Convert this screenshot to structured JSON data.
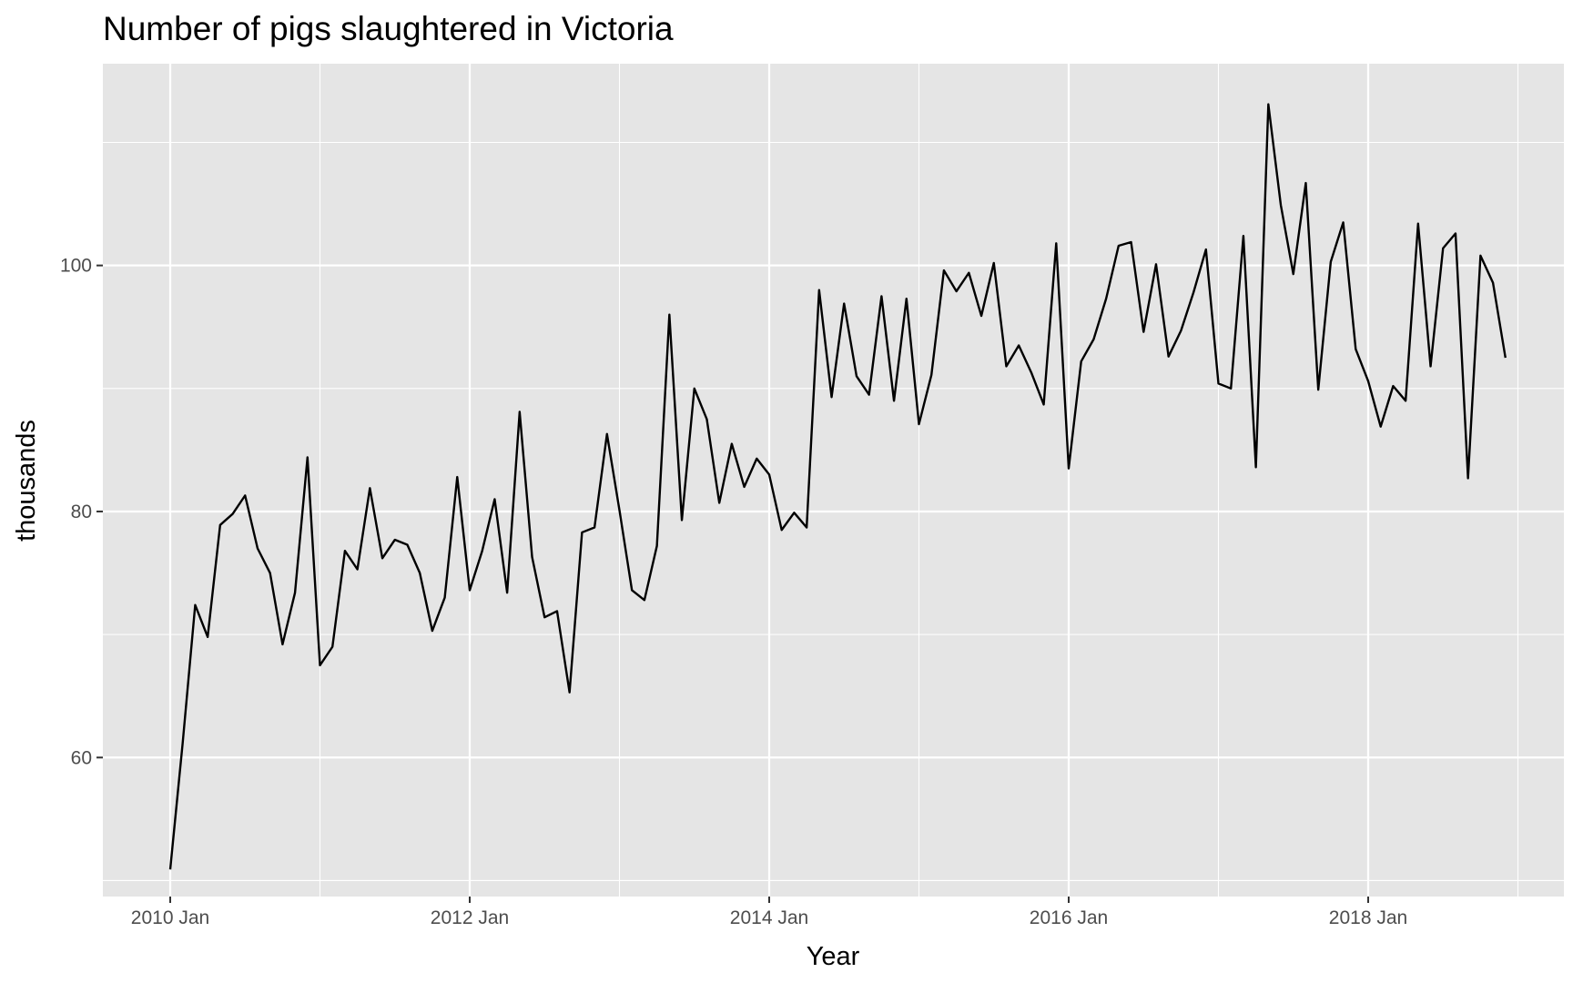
{
  "chart_data": {
    "type": "line",
    "title": "Number of pigs slaughtered in Victoria",
    "xlabel": "Year",
    "ylabel": "thousands",
    "grid": true,
    "legend": "none",
    "x_ticks": [
      "2010 Jan",
      "2012 Jan",
      "2014 Jan",
      "2016 Jan",
      "2018 Jan"
    ],
    "y_ticks": [
      60,
      80,
      100
    ],
    "ylim": [
      48.7,
      116.4
    ],
    "series": [
      {
        "color": "#000000",
        "start": "2010 Jan",
        "frequency": "monthly",
        "values": [
          50.9,
          61.2,
          72.4,
          69.8,
          78.9,
          79.8,
          81.3,
          77.0,
          75.0,
          69.2,
          73.4,
          84.4,
          67.5,
          69.0,
          76.8,
          75.3,
          81.9,
          76.2,
          77.7,
          77.3,
          75.0,
          70.3,
          73.0,
          82.8,
          73.6,
          76.8,
          81.0,
          73.4,
          88.1,
          76.3,
          71.4,
          71.9,
          65.3,
          78.3,
          78.7,
          86.3,
          80.1,
          73.6,
          72.8,
          77.2,
          96.0,
          79.3,
          90.0,
          87.5,
          80.7,
          85.5,
          82.0,
          84.3,
          83.0,
          78.5,
          79.9,
          78.7,
          98.0,
          89.3,
          96.9,
          91.0,
          89.5,
          97.5,
          89.0,
          97.3,
          87.1,
          91.1,
          99.6,
          97.9,
          99.4,
          95.9,
          100.2,
          91.8,
          93.5,
          91.3,
          88.7,
          101.8,
          83.5,
          92.2,
          94.0,
          97.3,
          101.6,
          101.9,
          94.6,
          100.1,
          92.6,
          94.7,
          97.8,
          101.3,
          90.4,
          90.0,
          102.4,
          83.6,
          113.1,
          104.9,
          99.3,
          106.7,
          89.9,
          100.3,
          103.5,
          93.2,
          90.6,
          86.9,
          90.2,
          89.0,
          103.4,
          91.8,
          101.4,
          102.6,
          82.7,
          100.8,
          98.6,
          92.5
        ]
      }
    ]
  }
}
